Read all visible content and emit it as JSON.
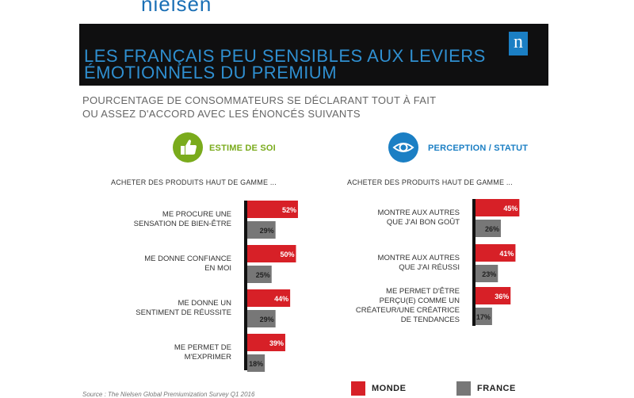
{
  "logo_text": "nielsen",
  "brand_mark": "n",
  "title": "LES FRANÇAIS PEU SENSIBLES AUX LEVIERS ÉMOTIONNELS DU PREMIUM",
  "subtitle_lines": [
    "POURCENTAGE DE CONSOMMATEURS SE DÉCLARANT TOUT À FAIT",
    "OU ASSEZ D'ACCORD AVEC LES ÉNONCÉS SUIVANTS"
  ],
  "colors": {
    "monde": "#d72027",
    "france": "#777777",
    "green": "#7aab1c",
    "blue": "#1b7fc4",
    "title_bg": "#0f0f10",
    "title_fg": "#2f8fd0"
  },
  "icons": {
    "left": "thumbs-up-icon",
    "right": "eye-icon"
  },
  "source": "Source : The Nielsen Global Premiumization Survey Q1 2016",
  "chart_data": [
    {
      "type": "bar",
      "title": "ESTIME DE SOI",
      "intro": "ACHETER DES PRODUITS HAUT DE GAMME ...",
      "categories": [
        [
          "ME PROCURE UNE",
          "SENSATION DE BIEN-ÊTRE"
        ],
        [
          "ME DONNE CONFIANCE",
          "EN MOI"
        ],
        [
          "ME DONNE UN",
          "SENTIMENT DE RÉUSSITE"
        ],
        [
          "ME PERMET DE",
          "M'EXPRIMER"
        ]
      ],
      "series": [
        {
          "name": "MONDE",
          "values": [
            52,
            50,
            44,
            39
          ]
        },
        {
          "name": "FRANCE",
          "values": [
            29,
            25,
            29,
            18
          ]
        }
      ],
      "unit": "%"
    },
    {
      "type": "bar",
      "title": "PERCEPTION / STATUT",
      "intro": "ACHETER DES PRODUITS HAUT DE GAMME ...",
      "categories": [
        [
          "MONTRE AUX AUTRES",
          "QUE J'AI BON GOÛT"
        ],
        [
          "MONTRE AUX AUTRES",
          "QUE J'AI RÉUSSI"
        ],
        [
          "ME PERMET D'ÊTRE",
          "PERÇU(E) COMME UN",
          "CRÉATEUR/UNE CRÉATRICE",
          "DE TENDANCES"
        ]
      ],
      "series": [
        {
          "name": "MONDE",
          "values": [
            45,
            41,
            36
          ]
        },
        {
          "name": "FRANCE",
          "values": [
            26,
            23,
            17
          ]
        }
      ],
      "unit": "%"
    }
  ],
  "legend": [
    {
      "label": "MONDE",
      "color": "#d72027"
    },
    {
      "label": "FRANCE",
      "color": "#777777"
    }
  ]
}
